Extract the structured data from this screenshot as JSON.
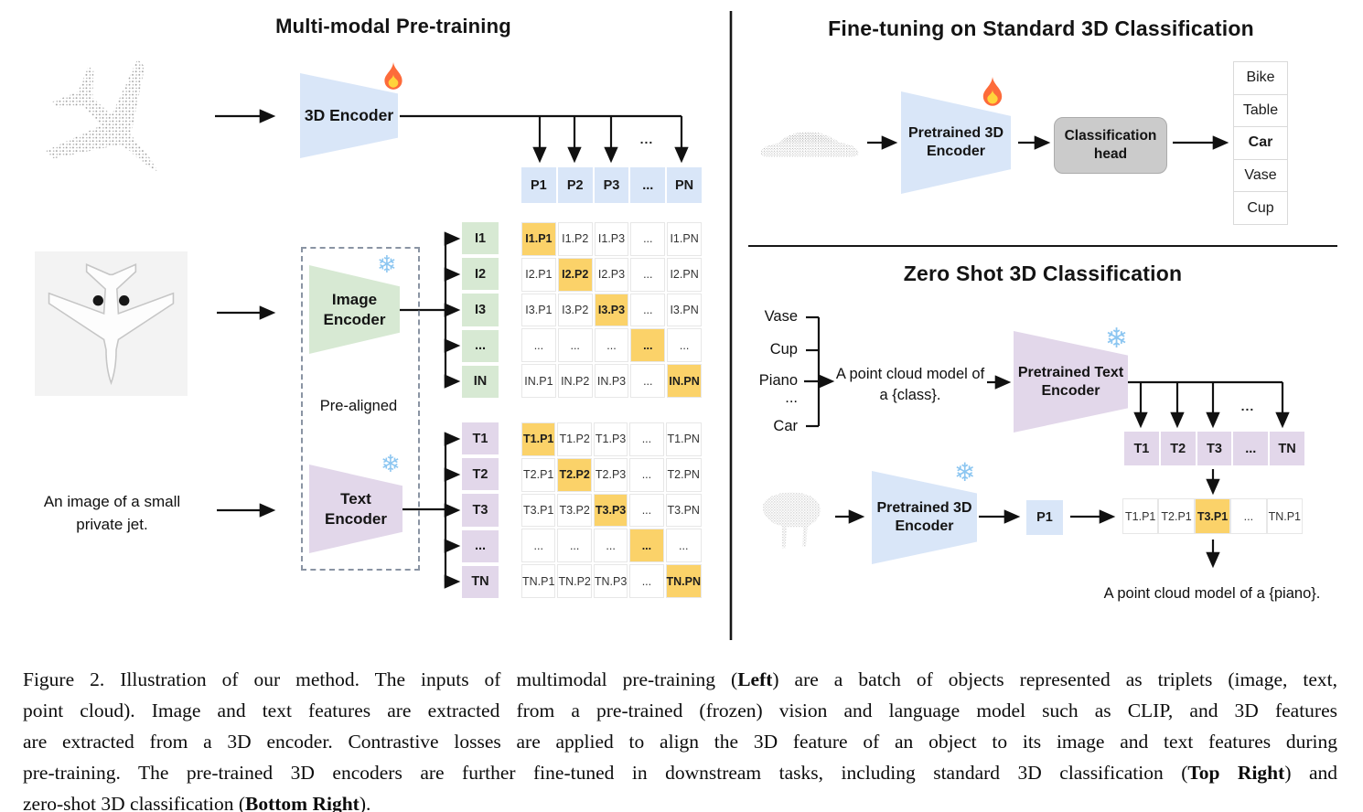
{
  "pretraining": {
    "title": "Multi-modal Pre-training",
    "encoder_3d_label": "3D Encoder",
    "image_encoder": [
      "Image",
      "Encoder"
    ],
    "text_encoder": [
      "Text",
      "Encoder"
    ],
    "prealigned_label": "Pre-aligned",
    "text_input": [
      "An image of a small",
      "private jet."
    ],
    "comb_ellipsis": "...",
    "p_row": [
      "P1",
      "P2",
      "P3",
      "...",
      "PN"
    ],
    "image_rows": [
      "I1",
      "I2",
      "I3",
      "...",
      "IN"
    ],
    "text_rows": [
      "T1",
      "T2",
      "T3",
      "...",
      "TN"
    ],
    "image_matrix": [
      [
        "I1.P1",
        "I1.P2",
        "I1.P3",
        "...",
        "I1.PN"
      ],
      [
        "I2.P1",
        "I2.P2",
        "I2.P3",
        "...",
        "I2.PN"
      ],
      [
        "I3.P1",
        "I3.P2",
        "I3.P3",
        "...",
        "I3.PN"
      ],
      [
        "...",
        "...",
        "...",
        "...",
        "..."
      ],
      [
        "IN.P1",
        "IN.P2",
        "IN.P3",
        "...",
        "IN.PN"
      ]
    ],
    "text_matrix": [
      [
        "T1.P1",
        "T1.P2",
        "T1.P3",
        "...",
        "T1.PN"
      ],
      [
        "T2.P1",
        "T2.P2",
        "T2.P3",
        "...",
        "T2.PN"
      ],
      [
        "T3.P1",
        "T3.P2",
        "T3.P3",
        "...",
        "T3.PN"
      ],
      [
        "...",
        "...",
        "...",
        "...",
        "..."
      ],
      [
        "TN.P1",
        "TN.P2",
        "TN.P3",
        "...",
        "TN.PN"
      ]
    ],
    "diagonal_highlighted": true
  },
  "finetune": {
    "title": "Fine-tuning on Standard 3D Classification",
    "encoder": [
      "Pretrained 3D",
      "Encoder"
    ],
    "head": [
      "Classification",
      "head"
    ],
    "classes": [
      {
        "label": "Bike",
        "highlight": false
      },
      {
        "label": "Table",
        "highlight": false
      },
      {
        "label": "Car",
        "highlight": true
      },
      {
        "label": "Vase",
        "highlight": false
      },
      {
        "label": "Cup",
        "highlight": false
      }
    ]
  },
  "zeroshot": {
    "title": "Zero Shot 3D Classification",
    "class_prompts": [
      "Vase",
      "Cup",
      "Piano",
      "...",
      "Car"
    ],
    "prompt": [
      "A point cloud model of",
      "a {class}."
    ],
    "text_encoder": [
      "Pretrained Text",
      "Encoder"
    ],
    "encoder_3d": [
      "Pretrained 3D",
      "Encoder"
    ],
    "p1_label": "P1",
    "comb_ellipsis": "...",
    "t_row": [
      "T1",
      "T2",
      "T3",
      "...",
      "TN"
    ],
    "tp_row": [
      {
        "label": "T1.P1",
        "highlight": false
      },
      {
        "label": "T2.P1",
        "highlight": false
      },
      {
        "label": "T3.P1",
        "highlight": true
      },
      {
        "label": "...",
        "highlight": false
      },
      {
        "label": "TN.P1",
        "highlight": false
      }
    ],
    "result": "A point cloud model of a {piano}."
  },
  "icons": {
    "fire": "fire-icon",
    "snowflake": "snowflake-icon",
    "snowflake_glyph": "❄"
  },
  "colors": {
    "cell_blue": "#d9e6f8",
    "cell_green": "#d7e9d3",
    "cell_purple": "#e2d7ea",
    "highlight_orange": "#fbd269",
    "head_gray": "#cbcbcb",
    "snowflake_blue": "#8cc6f1",
    "fire_orange": "#ff6b35"
  },
  "caption": {
    "lines": [
      [
        {
          "t": "Figure 2. Illustration of our method. The inputs of multimodal pre-training (",
          "b": 0
        },
        {
          "t": "Left",
          "b": 1
        },
        {
          "t": ") are a batch of objects represented as triplets (image, text,",
          "b": 0
        }
      ],
      [
        {
          "t": "point cloud). Image and text features are extracted from a pre-trained (frozen) vision and language model such as CLIP, and 3D features",
          "b": 0
        }
      ],
      [
        {
          "t": "are extracted from a 3D encoder. Contrastive losses are applied to align the 3D feature of an object to its image and text features during",
          "b": 0
        }
      ],
      [
        {
          "t": "pre-training. The pre-trained 3D encoders are further fine-tuned in downstream tasks, including standard 3D classification (",
          "b": 0
        },
        {
          "t": "Top Right",
          "b": 1
        },
        {
          "t": ") and",
          "b": 0
        }
      ],
      [
        {
          "t": "zero-shot 3D classification (",
          "b": 0
        },
        {
          "t": "Bottom Right",
          "b": 1
        },
        {
          "t": ").",
          "b": 0
        }
      ]
    ]
  }
}
